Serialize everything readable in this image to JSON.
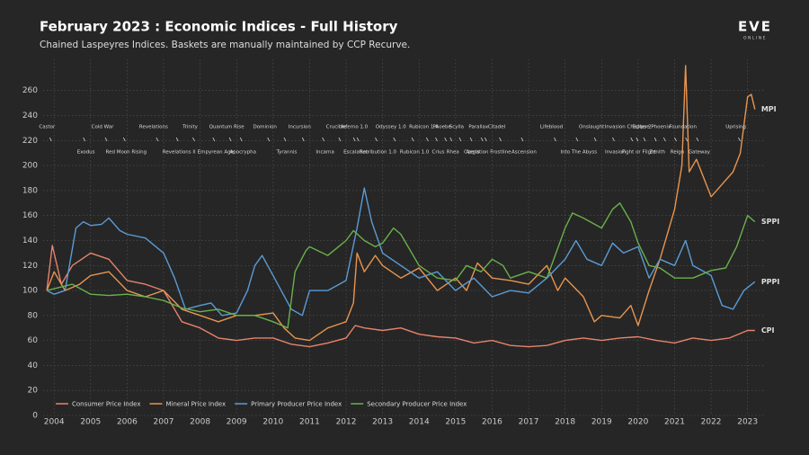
{
  "chart_data": {
    "type": "line",
    "title": "February 2023 : Economic Indices - Full History",
    "subtitle": "Chained Laspeyres Indices. Baskets are manually maintained by CCP Recurve.",
    "logo": "EVE",
    "logo_sub": "ONLINE",
    "xlim": [
      2003.7,
      2023.5
    ],
    "xticks": [
      2004,
      2005,
      2006,
      2007,
      2008,
      2009,
      2010,
      2011,
      2012,
      2013,
      2014,
      2015,
      2016,
      2017,
      2018,
      2019,
      2020,
      2021,
      2022,
      2023
    ],
    "ylim": [
      0,
      285
    ],
    "yticks": [
      0,
      20,
      40,
      60,
      80,
      100,
      120,
      140,
      160,
      180,
      200,
      220,
      240,
      260
    ],
    "grid": true,
    "legend": "lower left",
    "series": [
      {
        "name": "Consumer Price Index",
        "label": "CPI",
        "color": "#e8836b",
        "x": [
          2003.8,
          2003.95,
          2004.2,
          2004.5,
          2005,
          2005.5,
          2006,
          2006.5,
          2007,
          2007.5,
          2008,
          2008.5,
          2009,
          2009.5,
          2010,
          2010.5,
          2011,
          2011.5,
          2012,
          2012.25,
          2012.5,
          2013,
          2013.5,
          2014,
          2014.5,
          2015,
          2015.5,
          2016,
          2016.5,
          2017,
          2017.5,
          2018,
          2018.5,
          2019,
          2019.5,
          2020,
          2020.5,
          2021,
          2021.5,
          2022,
          2022.5,
          2023,
          2023.2
        ],
        "values": [
          100,
          136,
          105,
          120,
          130,
          125,
          108,
          105,
          100,
          75,
          70,
          62,
          60,
          62,
          62,
          57,
          55,
          58,
          62,
          72,
          70,
          68,
          70,
          65,
          63,
          62,
          58,
          60,
          56,
          55,
          56,
          60,
          62,
          60,
          62,
          63,
          60,
          58,
          62,
          60,
          62,
          68,
          68
        ]
      },
      {
        "name": "Mineral Price Index",
        "label": "MPI",
        "color": "#e8954f",
        "x": [
          2003.8,
          2004,
          2004.3,
          2004.7,
          2005,
          2005.5,
          2006,
          2006.5,
          2007,
          2007.5,
          2008,
          2008.5,
          2009,
          2009.5,
          2010,
          2010.3,
          2010.6,
          2011,
          2011.5,
          2012,
          2012.2,
          2012.3,
          2012.5,
          2012.8,
          2013,
          2013.5,
          2014,
          2014.5,
          2015,
          2015.3,
          2015.6,
          2016,
          2016.5,
          2017,
          2017.5,
          2017.8,
          2018,
          2018.5,
          2018.8,
          2019,
          2019.5,
          2019.8,
          2020,
          2020.3,
          2020.6,
          2021,
          2021.2,
          2021.3,
          2021.4,
          2021.6,
          2022,
          2022.3,
          2022.6,
          2022.8,
          2023,
          2023.1,
          2023.2
        ],
        "values": [
          100,
          115,
          100,
          105,
          112,
          115,
          100,
          95,
          100,
          85,
          80,
          75,
          80,
          80,
          82,
          70,
          62,
          60,
          70,
          75,
          90,
          130,
          115,
          128,
          120,
          110,
          118,
          100,
          110,
          100,
          122,
          110,
          108,
          105,
          120,
          100,
          110,
          95,
          75,
          80,
          78,
          88,
          72,
          100,
          125,
          165,
          200,
          280,
          195,
          205,
          175,
          185,
          195,
          210,
          255,
          257,
          245
        ]
      },
      {
        "name": "Primary Producer Price Index",
        "label": "PPPI",
        "color": "#5b9bd5",
        "x": [
          2003.8,
          2004,
          2004.3,
          2004.6,
          2004.8,
          2005,
          2005.3,
          2005.5,
          2005.8,
          2006,
          2006.5,
          2007,
          2007.3,
          2007.6,
          2008,
          2008.3,
          2008.6,
          2009,
          2009.3,
          2009.5,
          2009.7,
          2010,
          2010.5,
          2010.8,
          2011,
          2011.5,
          2012,
          2012.3,
          2012.5,
          2012.7,
          2013,
          2013.5,
          2014,
          2014.5,
          2015,
          2015.5,
          2016,
          2016.5,
          2017,
          2017.5,
          2018,
          2018.3,
          2018.6,
          2019,
          2019.3,
          2019.6,
          2020,
          2020.3,
          2020.6,
          2021,
          2021.3,
          2021.5,
          2022,
          2022.3,
          2022.6,
          2022.9,
          2023.2
        ],
        "values": [
          100,
          97,
          100,
          150,
          155,
          152,
          153,
          158,
          148,
          145,
          142,
          130,
          110,
          85,
          88,
          90,
          80,
          82,
          100,
          120,
          128,
          112,
          85,
          80,
          100,
          100,
          108,
          150,
          182,
          155,
          130,
          120,
          110,
          115,
          100,
          110,
          95,
          100,
          98,
          110,
          125,
          140,
          125,
          120,
          138,
          130,
          135,
          110,
          125,
          120,
          140,
          120,
          112,
          88,
          85,
          100,
          107
        ]
      },
      {
        "name": "Secondary Producer Price Index",
        "label": "SPPI",
        "color": "#6ab04c",
        "x": [
          2003.8,
          2004.5,
          2005,
          2005.5,
          2006,
          2006.5,
          2007,
          2007.5,
          2008,
          2008.5,
          2009,
          2009.5,
          2010,
          2010.4,
          2010.6,
          2010.9,
          2011,
          2011.5,
          2012,
          2012.2,
          2012.5,
          2012.8,
          2013,
          2013.3,
          2013.5,
          2014,
          2014.5,
          2015,
          2015.3,
          2015.7,
          2016,
          2016.3,
          2016.5,
          2017,
          2017.5,
          2018,
          2018.2,
          2018.5,
          2019,
          2019.3,
          2019.5,
          2019.8,
          2020,
          2020.3,
          2020.6,
          2021,
          2021.5,
          2022,
          2022.4,
          2022.7,
          2023,
          2023.2
        ],
        "values": [
          100,
          105,
          97,
          96,
          97,
          95,
          92,
          86,
          83,
          85,
          80,
          80,
          75,
          70,
          115,
          132,
          135,
          128,
          140,
          148,
          140,
          135,
          138,
          150,
          145,
          120,
          110,
          108,
          120,
          115,
          125,
          120,
          110,
          115,
          110,
          150,
          162,
          158,
          150,
          165,
          170,
          155,
          138,
          120,
          118,
          110,
          110,
          116,
          118,
          135,
          160,
          155
        ]
      }
    ],
    "annotations": [
      {
        "text": "Castor",
        "x": 2003.88
      },
      {
        "text": "Exodus",
        "x": 2004.8
      },
      {
        "text": "Cold War",
        "x": 2005.4
      },
      {
        "text": "Red Moon Rising",
        "x": 2005.9
      },
      {
        "text": "Revelations",
        "x": 2006.8
      },
      {
        "text": "Revelations II",
        "x": 2007.35
      },
      {
        "text": "Trinity",
        "x": 2007.8
      },
      {
        "text": "Empyrean Age",
        "x": 2008.35
      },
      {
        "text": "Quantum Rise",
        "x": 2008.8
      },
      {
        "text": "Apocrypha",
        "x": 2009.1
      },
      {
        "text": "Dominion",
        "x": 2009.85
      },
      {
        "text": "Tyrannis",
        "x": 2010.3
      },
      {
        "text": "Incursion",
        "x": 2010.8
      },
      {
        "text": "Incarna",
        "x": 2011.35
      },
      {
        "text": "Crucible",
        "x": 2011.8
      },
      {
        "text": "Escalation",
        "x": 2012.2
      },
      {
        "text": "Inferno 1.0",
        "x": 2012.3
      },
      {
        "text": "Retribution 1.0",
        "x": 2012.8
      },
      {
        "text": "Odyssey 1.0",
        "x": 2013.3
      },
      {
        "text": "Rubicon 1.0",
        "x": 2013.8
      },
      {
        "text": "Rubicon 1.4",
        "x": 2014.2
      },
      {
        "text": "Crius",
        "x": 2014.45
      },
      {
        "text": "Phoebe",
        "x": 2014.7
      },
      {
        "text": "Rhea",
        "x": 2014.85
      },
      {
        "text": "Scylla",
        "x": 2015.1
      },
      {
        "text": "Aegis",
        "x": 2015.4
      },
      {
        "text": "Parallax",
        "x": 2015.7
      },
      {
        "text": "Operation Frostline",
        "x": 2015.8
      },
      {
        "text": "Citadel",
        "x": 2016.2
      },
      {
        "text": "Ascension",
        "x": 2016.8
      },
      {
        "text": "Lifeblood",
        "x": 2017.7
      },
      {
        "text": "Into The Abyss",
        "x": 2018.3
      },
      {
        "text": "Onslaught",
        "x": 2018.8
      },
      {
        "text": "Invasion",
        "x": 2019.3
      },
      {
        "text": "Invasion Chapter 2",
        "x": 2019.8
      },
      {
        "text": "Fight or Flight",
        "x": 2019.95
      },
      {
        "text": "Eclipse",
        "x": 2020.15
      },
      {
        "text": "Zenith",
        "x": 2020.45
      },
      {
        "text": "Phoenix",
        "x": 2020.7
      },
      {
        "text": "Reign",
        "x": 2021.0
      },
      {
        "text": "Foundation",
        "x": 2021.3
      },
      {
        "text": "Gateway",
        "x": 2021.6
      },
      {
        "text": "Uprising",
        "x": 2022.75
      }
    ]
  }
}
